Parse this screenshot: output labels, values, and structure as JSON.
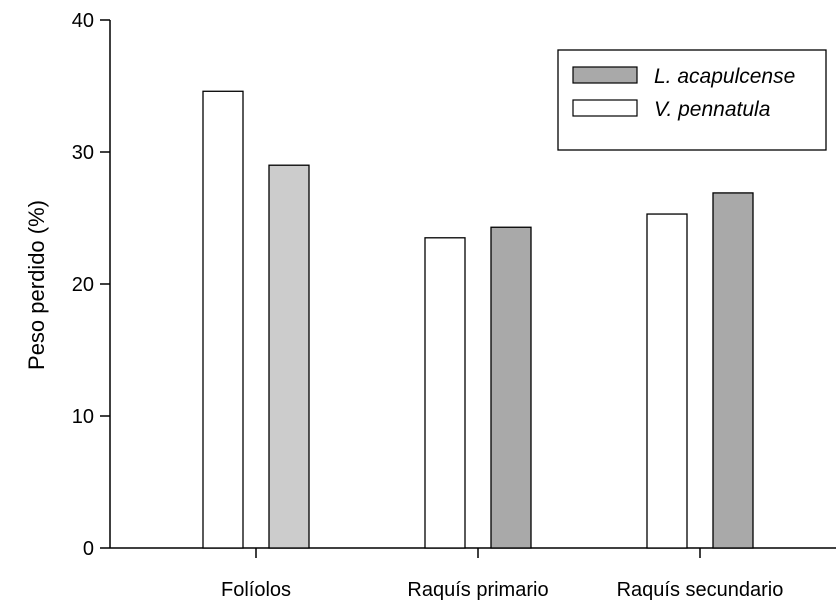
{
  "chart_data": {
    "type": "bar",
    "categories": [
      "Folíolos",
      "Raquís primario",
      "Raquís secundario"
    ],
    "series": [
      {
        "name": "V. pennatula",
        "values": [
          34.6,
          23.5,
          25.3
        ],
        "color": "#ffffff"
      },
      {
        "name": "L. acapulcense",
        "values": [
          29.0,
          24.3,
          26.9
        ],
        "color": "#a9a9a9"
      }
    ],
    "bar_colors_override": {
      "1": {
        "0": "#cccccc"
      }
    },
    "title": "",
    "xlabel": "",
    "ylabel": "Peso perdido (%)",
    "ylim": [
      0,
      40
    ],
    "yticks": [
      0,
      10,
      20,
      30,
      40
    ],
    "grid": false,
    "legend_position": "top-right",
    "legend_order": [
      "L. acapulcense",
      "V. pennatula"
    ]
  }
}
